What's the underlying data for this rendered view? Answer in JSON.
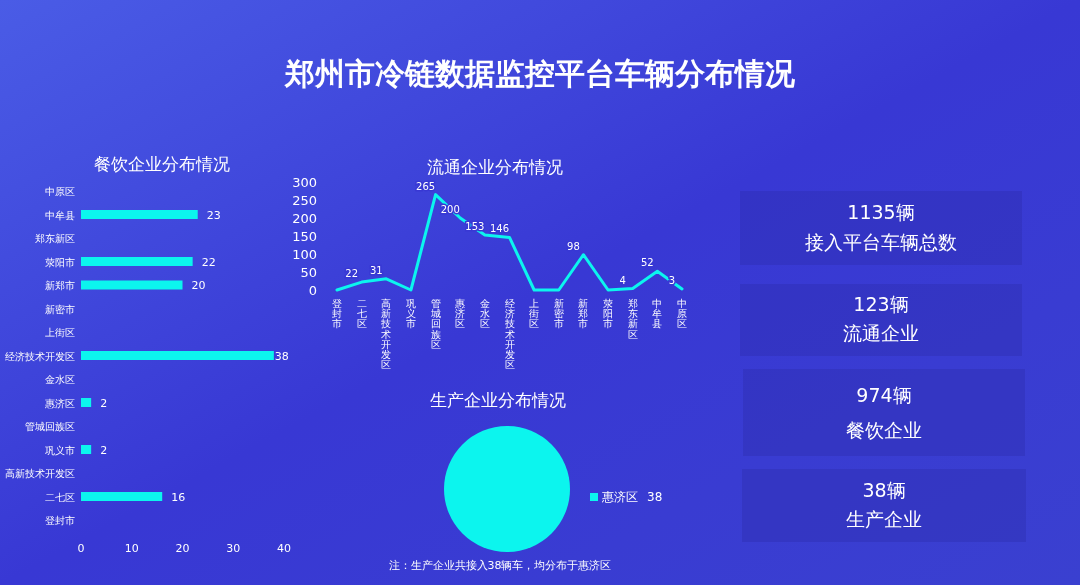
{
  "chart_data": [
    {
      "type": "other",
      "title": "郑州市冷链数据监控平台车辆分布情况"
    },
    {
      "type": "bar",
      "orientation": "horizontal",
      "title": "餐饮企业分布情况",
      "categories": [
        "中原区",
        "中牟县",
        "郑东新区",
        "荥阳市",
        "新郑市",
        "新密市",
        "上街区",
        "经济技术开发区",
        "金水区",
        "惠济区",
        "管城回族区",
        "巩义市",
        "高新技术开发区",
        "二七区",
        "登封市"
      ],
      "values": [
        0,
        23,
        0,
        22,
        20,
        0,
        0,
        38,
        0,
        2,
        0,
        2,
        0,
        16,
        0
      ],
      "value_labels": [
        null,
        "23",
        null,
        "22",
        "20",
        null,
        null,
        "38",
        null,
        "2",
        null,
        "2",
        null,
        "16",
        null
      ],
      "color": "#0cf5ee",
      "xlim": [
        0,
        40
      ],
      "xticks": [
        0,
        10,
        20,
        30,
        40
      ],
      "grid": false
    },
    {
      "type": "line",
      "title": "流通企业分布情况",
      "categories": [
        "登封市",
        "二七区",
        "高新技术开发区",
        "巩义市",
        "管城回族区",
        "惠济区",
        "金水区",
        "经济技术开发区",
        "上街区",
        "新密市",
        "新郑市",
        "荥阳市",
        "郑东新区",
        "中牟县",
        "中原区"
      ],
      "values": [
        0,
        22,
        31,
        0,
        265,
        200,
        153,
        146,
        0,
        0,
        98,
        0,
        4,
        52,
        3
      ],
      "value_labels": [
        null,
        "22",
        "31",
        null,
        "265",
        "200",
        "153",
        "146",
        null,
        null,
        "98",
        null,
        "4",
        "52",
        "3"
      ],
      "color": "#0cf5ee",
      "ylim": [
        0,
        300
      ],
      "yticks": [
        0,
        50,
        100,
        150,
        200,
        250,
        300
      ],
      "grid": false,
      "marker": "none",
      "line_style": "solid"
    },
    {
      "type": "pie",
      "title": "生产企业分布情况",
      "categories": [
        "惠济区"
      ],
      "values": [
        38
      ],
      "colors": [
        "#0cf5ee"
      ],
      "value_labels": [
        "38"
      ],
      "legend": "right",
      "annotations": [
        "注：生产企业共接入38辆车，均分布于惠济区"
      ]
    },
    {
      "type": "other",
      "annotations": [
        "1135辆",
        "接入平台车辆总数",
        "123辆",
        "流通企业",
        "974辆",
        "餐饮企业",
        "38辆",
        "生产企业"
      ]
    }
  ]
}
